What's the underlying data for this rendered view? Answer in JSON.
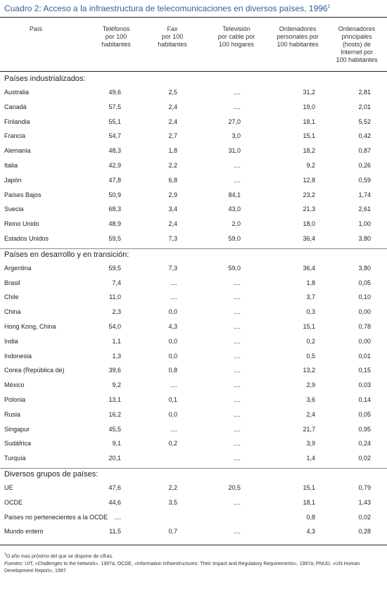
{
  "title": {
    "text": "Cuadro 2:  Acceso a la infraestructura de telecomunicaciones en diversos países, 1996",
    "sup": "1"
  },
  "columns": [
    {
      "label": "País"
    },
    {
      "label": "Teléfonos\npor 100\nhabitantes"
    },
    {
      "label": "Fax\npor 100\nhabitantes"
    },
    {
      "label": "Televisión\npor cable por\n100 hogares"
    },
    {
      "label": "Ordenadores\npersonales por\n100 habitantes"
    },
    {
      "label": "Ordenadores\nprincipales\n(hosts) de\nInternet por\n100 habitantes"
    }
  ],
  "sections": [
    {
      "heading": "Países industrializados:",
      "rows": [
        {
          "country": "Australia",
          "values": [
            "49,6",
            "2,5",
            "....",
            "31,2",
            "2,81"
          ]
        },
        {
          "country": "Canadá",
          "values": [
            "57,5",
            "2,4",
            "....",
            "19,0",
            "2,01"
          ]
        },
        {
          "country": "Finlandia",
          "values": [
            "55,1",
            "2,4",
            "27,0",
            "18,1",
            "5,52"
          ]
        },
        {
          "country": "Francia",
          "values": [
            "54,7",
            "2,7",
            "3,0",
            "15,1",
            "0,42"
          ]
        },
        {
          "country": "Alemania",
          "values": [
            "48,3",
            "1,8",
            "31,0",
            "18,2",
            "0,87"
          ]
        },
        {
          "country": "Italia",
          "values": [
            "42,9",
            "2,2",
            "....",
            "9,2",
            "0,26"
          ]
        },
        {
          "country": "Japón",
          "values": [
            "47,8",
            "6,8",
            "....",
            "12,8",
            "0,59"
          ]
        },
        {
          "country": "Países Bajos",
          "values": [
            "50,9",
            "2,9",
            "84,1",
            "23,2",
            "1,74"
          ]
        },
        {
          "country": "Suecia",
          "values": [
            "68,3",
            "3,4",
            "43,0",
            "21,3",
            "2,61"
          ]
        },
        {
          "country": "Reino Unido",
          "values": [
            "48,9",
            "2,4",
            "2,0",
            "18,0",
            "1,00"
          ]
        },
        {
          "country": "Estados Unidos",
          "values": [
            "59,5",
            "7,3",
            "59,0",
            "36,4",
            "3,80"
          ]
        }
      ]
    },
    {
      "heading": "Países en desarrollo y en transición:",
      "rows": [
        {
          "country": "Argentina",
          "values": [
            "59,5",
            "7,3",
            "59,0",
            "36,4",
            "3,80"
          ]
        },
        {
          "country": "Brasil",
          "values": [
            "7,4",
            "....",
            "....",
            "1,8",
            "0,05"
          ]
        },
        {
          "country": "Chile",
          "values": [
            "11,0",
            "....",
            "....",
            "3,7",
            "0,10"
          ]
        },
        {
          "country": "China",
          "values": [
            "2,3",
            "0,0",
            "....",
            "0,3",
            "0,00"
          ]
        },
        {
          "country": "Hong Kong, China",
          "values": [
            "54,0",
            "4,3",
            "....",
            "15,1",
            "0,78"
          ]
        },
        {
          "country": "India",
          "values": [
            "1,1",
            "0,0",
            "....",
            "0,2",
            "0,00"
          ]
        },
        {
          "country": "Indonesia",
          "values": [
            "1,3",
            "0,0",
            "....",
            "0,5",
            "0,01"
          ]
        },
        {
          "country": "Corea (República de)",
          "values": [
            "39,6",
            "0,8",
            "....",
            "13,2",
            "0,15"
          ]
        },
        {
          "country": "México",
          "values": [
            "9,2",
            "....",
            "....",
            "2,9",
            "0,03"
          ]
        },
        {
          "country": "Polonia",
          "values": [
            "13,1",
            "0,1",
            "....",
            "3,6",
            "0,14"
          ]
        },
        {
          "country": "Rusia",
          "values": [
            "16,2",
            "0,0",
            "....",
            "2,4",
            "0,05"
          ]
        },
        {
          "country": "Singapur",
          "values": [
            "45,5",
            "....",
            "....",
            "21,7",
            "0,95"
          ]
        },
        {
          "country": "Sudáfrica",
          "values": [
            "9,1",
            "0,2",
            "....",
            "3,9",
            "0,24"
          ]
        },
        {
          "country": "Turquía",
          "values": [
            "20,1",
            "",
            "....",
            "1,4",
            "0,02"
          ]
        }
      ]
    },
    {
      "heading": "Diversos grupos de países:",
      "rows": [
        {
          "country": "UE",
          "values": [
            "47,6",
            "2,2",
            "20,5",
            "15,1",
            "0,79"
          ]
        },
        {
          "country": "OCDE",
          "values": [
            "44,6",
            "3,5",
            "....",
            "18,1",
            "1,43"
          ]
        },
        {
          "country": "Países no pertenecientes a la OCDE",
          "values": [
            "....",
            "",
            "",
            "0,8",
            "0,02"
          ]
        },
        {
          "country": "Mundo entero",
          "values": [
            "11,5",
            "0,7",
            "....",
            "4,3",
            "0,28"
          ]
        }
      ]
    }
  ],
  "footnotes": {
    "note1_sup": "1",
    "note1": "O año mas próximo del que se dispone de cifras.",
    "sources_label": "Fuentes:",
    "sources": " UIT, «Challenges to the Network», 1997a; OCDE, «Information Infraestructures: Their Impact and Regulatory Requirements», 1997a; PNUD, «UN Human Development Report», 1997."
  }
}
